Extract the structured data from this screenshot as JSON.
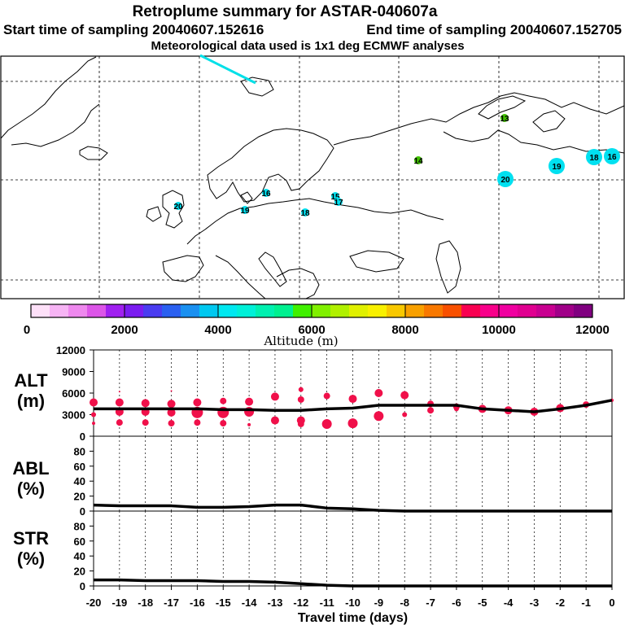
{
  "header": {
    "title": "Retroplume summary for ASTAR-040607a",
    "subtitle_start": "Start time of sampling 20040607.152616",
    "subtitle_end": "End time of sampling 20040607.152705",
    "subtitle_met": "Meteorological data used is 1x1 deg ECMWF analyses"
  },
  "colorbar": {
    "title": "Altitude (m)",
    "ticks": [
      "0",
      "2000",
      "4000",
      "6000",
      "8000",
      "10000",
      "12000"
    ],
    "colors": [
      "#fde0f8",
      "#f6b4f4",
      "#ee88ee",
      "#dc55e8",
      "#a020f0",
      "#7a1cf0",
      "#4a3cf0",
      "#2a60f0",
      "#1a90f0",
      "#00c8f0",
      "#00e8f0",
      "#00f0d8",
      "#00f0b0",
      "#00f090",
      "#40f000",
      "#80f000",
      "#b0f000",
      "#e0f000",
      "#f8f000",
      "#f8c800",
      "#f8a000",
      "#f87800",
      "#f85000",
      "#f80050",
      "#f8008a",
      "#f000a0",
      "#e00090",
      "#c80090",
      "#a00088",
      "#800080"
    ]
  },
  "map": {
    "markers": [
      {
        "label": "13",
        "color": "#40c000",
        "size": "small"
      },
      {
        "label": "14",
        "color": "#40c000",
        "size": "small"
      },
      {
        "label": "20",
        "color": "#00e0f0",
        "size": "large"
      },
      {
        "label": "19",
        "color": "#00e0f0",
        "size": "large"
      },
      {
        "label": "18",
        "color": "#00e0f0",
        "size": "large"
      },
      {
        "label": "16",
        "color": "#00e0f0",
        "size": "large"
      },
      {
        "label": "16",
        "color": "#00e0f0",
        "size": "small"
      },
      {
        "label": "15",
        "color": "#00e0f0",
        "size": "small"
      },
      {
        "label": "17",
        "color": "#00e0f0",
        "size": "small"
      },
      {
        "label": "18",
        "color": "#00e0f0",
        "size": "small"
      },
      {
        "label": "20",
        "color": "#00e0f0",
        "size": "small"
      },
      {
        "label": "19",
        "color": "#00e0f0",
        "size": "small"
      }
    ]
  },
  "chart_data": [
    {
      "type": "line",
      "title": "ALT (m)",
      "ylabel_top": "ALT",
      "ylabel_bottom": "(m)",
      "ylim": [
        0,
        12000
      ],
      "yticks": [
        "0",
        "3000",
        "6000",
        "9000",
        "12000"
      ],
      "x": [
        -20,
        -19,
        -18,
        -17,
        -16,
        -15,
        -14,
        -13,
        -12,
        -11,
        -10,
        -9,
        -8,
        -7,
        -6,
        -5,
        -4,
        -3,
        -2,
        -1,
        0
      ],
      "series": [
        {
          "name": "mean altitude",
          "values": [
            3800,
            3800,
            3800,
            3800,
            3800,
            3700,
            3700,
            3600,
            3600,
            3800,
            3900,
            4300,
            4300,
            4300,
            4300,
            3800,
            3600,
            3400,
            3800,
            4300,
            5000
          ]
        }
      ],
      "dots": [
        {
          "x": -20,
          "y": 4700,
          "r": 5
        },
        {
          "x": -20,
          "y": 3000,
          "r": 3
        },
        {
          "x": -20,
          "y": 1800,
          "r": 2
        },
        {
          "x": -19,
          "y": 4700,
          "r": 5
        },
        {
          "x": -19,
          "y": 3400,
          "r": 5
        },
        {
          "x": -19,
          "y": 1900,
          "r": 4
        },
        {
          "x": -19,
          "y": 6200,
          "r": 1
        },
        {
          "x": -18,
          "y": 4600,
          "r": 5
        },
        {
          "x": -18,
          "y": 3400,
          "r": 5
        },
        {
          "x": -18,
          "y": 1900,
          "r": 4
        },
        {
          "x": -17,
          "y": 4500,
          "r": 5
        },
        {
          "x": -17,
          "y": 3300,
          "r": 5
        },
        {
          "x": -17,
          "y": 1800,
          "r": 4
        },
        {
          "x": -17,
          "y": 6300,
          "r": 1
        },
        {
          "x": -16,
          "y": 4700,
          "r": 5
        },
        {
          "x": -16,
          "y": 3300,
          "r": 7
        },
        {
          "x": -16,
          "y": 1900,
          "r": 4
        },
        {
          "x": -15,
          "y": 4900,
          "r": 4
        },
        {
          "x": -15,
          "y": 3300,
          "r": 7
        },
        {
          "x": -15,
          "y": 1800,
          "r": 4
        },
        {
          "x": -14,
          "y": 4800,
          "r": 5
        },
        {
          "x": -14,
          "y": 3400,
          "r": 6
        },
        {
          "x": -14,
          "y": 1600,
          "r": 2
        },
        {
          "x": -13,
          "y": 5500,
          "r": 5
        },
        {
          "x": -13,
          "y": 2200,
          "r": 5
        },
        {
          "x": -13,
          "y": 5900,
          "r": 1
        },
        {
          "x": -12,
          "y": 6500,
          "r": 3
        },
        {
          "x": -12,
          "y": 5100,
          "r": 4
        },
        {
          "x": -12,
          "y": 2200,
          "r": 5
        },
        {
          "x": -12,
          "y": 1700,
          "r": 4
        },
        {
          "x": -11,
          "y": 5600,
          "r": 4
        },
        {
          "x": -11,
          "y": 1700,
          "r": 6
        },
        {
          "x": -10,
          "y": 5200,
          "r": 5
        },
        {
          "x": -10,
          "y": 1800,
          "r": 6
        },
        {
          "x": -9,
          "y": 6000,
          "r": 5
        },
        {
          "x": -9,
          "y": 2800,
          "r": 6
        },
        {
          "x": -8,
          "y": 5700,
          "r": 5
        },
        {
          "x": -8,
          "y": 3000,
          "r": 3
        },
        {
          "x": -7,
          "y": 4500,
          "r": 4
        },
        {
          "x": -7,
          "y": 3600,
          "r": 4
        },
        {
          "x": -6,
          "y": 4100,
          "r": 4
        },
        {
          "x": -6,
          "y": 3800,
          "r": 3
        },
        {
          "x": -5,
          "y": 3800,
          "r": 5
        },
        {
          "x": -4,
          "y": 3600,
          "r": 5
        },
        {
          "x": -3,
          "y": 3400,
          "r": 5
        },
        {
          "x": -2,
          "y": 3900,
          "r": 5
        },
        {
          "x": -1,
          "y": 4400,
          "r": 4
        },
        {
          "x": 0,
          "y": 5000,
          "r": 2
        }
      ]
    },
    {
      "type": "line",
      "title": "ABL (%)",
      "ylabel_top": "ABL",
      "ylabel_bottom": "(%)",
      "ylim": [
        0,
        100
      ],
      "yticks": [
        "0",
        "20",
        "40",
        "60",
        "80"
      ],
      "x": [
        -20,
        -19,
        -18,
        -17,
        -16,
        -15,
        -14,
        -13,
        -12,
        -11,
        -10,
        -9,
        -8,
        -7,
        -6,
        -5,
        -4,
        -3,
        -2,
        -1,
        0
      ],
      "series": [
        {
          "name": "ABL fraction",
          "values": [
            8,
            7,
            7,
            7,
            5,
            5,
            6,
            8,
            8,
            4,
            3,
            1,
            0,
            0,
            0,
            0,
            0,
            0,
            0,
            0,
            0
          ]
        }
      ]
    },
    {
      "type": "line",
      "title": "STR (%)",
      "ylabel_top": "STR",
      "ylabel_bottom": "(%)",
      "ylim": [
        0,
        100
      ],
      "yticks": [
        "0",
        "20",
        "40",
        "60",
        "80"
      ],
      "xlabel": "Travel time (days)",
      "xticks": [
        "-20",
        "-19",
        "-18",
        "-17",
        "-16",
        "-15",
        "-14",
        "-13",
        "-12",
        "-11",
        "-10",
        "-9",
        "-8",
        "-7",
        "-6",
        "-5",
        "-4",
        "-3",
        "-2",
        "-1",
        "0"
      ],
      "x": [
        -20,
        -19,
        -18,
        -17,
        -16,
        -15,
        -14,
        -13,
        -12,
        -11,
        -10,
        -9,
        -8,
        -7,
        -6,
        -5,
        -4,
        -3,
        -2,
        -1,
        0
      ],
      "series": [
        {
          "name": "STR fraction",
          "values": [
            8,
            8,
            7,
            7,
            7,
            6,
            6,
            5,
            3,
            1,
            0,
            0,
            0,
            0,
            0,
            0,
            0,
            0,
            0,
            0,
            0
          ]
        }
      ]
    }
  ]
}
